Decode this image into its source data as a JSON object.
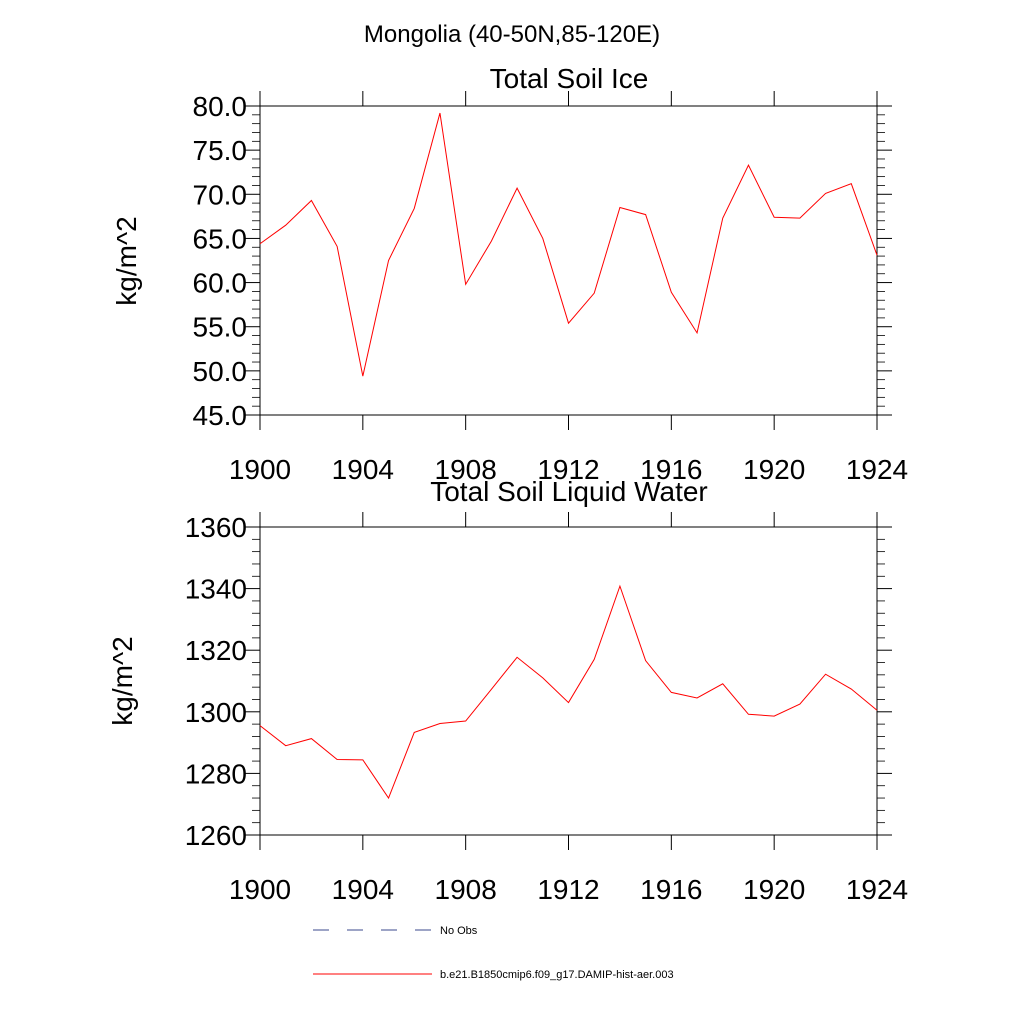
{
  "figure_title": "Mongolia (40-50N,85-120E)",
  "colors": {
    "series": "#ff0000",
    "no_obs": "#3b4a8c",
    "axis": "#000000"
  },
  "chart_data": [
    {
      "type": "line",
      "title": "Total Soil Ice",
      "xlabel": "",
      "ylabel": "kg/m^2",
      "xlim": [
        1900,
        1924
      ],
      "ylim": [
        45,
        80
      ],
      "xticks": [
        1900,
        1904,
        1908,
        1912,
        1916,
        1920,
        1924
      ],
      "xtick_labels": [
        "1900",
        "1904",
        "1908",
        "1912",
        "1916",
        "1920",
        "1924"
      ],
      "yticks": [
        45,
        50,
        55,
        60,
        65,
        70,
        75,
        80
      ],
      "ytick_labels": [
        "45.0",
        "50.0",
        "55.0",
        "60.0",
        "65.0",
        "70.0",
        "75.0",
        "80.0"
      ],
      "x": [
        1900,
        1901,
        1902,
        1903,
        1904,
        1905,
        1906,
        1907,
        1908,
        1909,
        1910,
        1911,
        1912,
        1913,
        1914,
        1915,
        1916,
        1917,
        1918,
        1919,
        1920,
        1921,
        1922,
        1923,
        1924
      ],
      "series": [
        {
          "name": "b.e21.B1850cmip6.f09_g17.DAMIP-hist-aer.003",
          "values": [
            64.4,
            66.5,
            69.3,
            64.1,
            49.4,
            62.5,
            68.4,
            79.2,
            59.8,
            64.7,
            70.7,
            65.0,
            55.4,
            58.8,
            68.5,
            67.7,
            58.9,
            54.3,
            67.3,
            73.3,
            67.4,
            67.3,
            70.1,
            71.2,
            63.1
          ]
        }
      ],
      "grid": false
    },
    {
      "type": "line",
      "title": "Total Soil Liquid Water",
      "xlabel": "",
      "ylabel": "kg/m^2",
      "xlim": [
        1900,
        1924
      ],
      "ylim": [
        1260,
        1360
      ],
      "xticks": [
        1900,
        1904,
        1908,
        1912,
        1916,
        1920,
        1924
      ],
      "xtick_labels": [
        "1900",
        "1904",
        "1908",
        "1912",
        "1916",
        "1920",
        "1924"
      ],
      "yticks": [
        1260,
        1280,
        1300,
        1320,
        1340,
        1360
      ],
      "ytick_labels": [
        "1260",
        "1280",
        "1300",
        "1320",
        "1340",
        "1360"
      ],
      "x": [
        1900,
        1901,
        1902,
        1903,
        1904,
        1905,
        1906,
        1907,
        1908,
        1909,
        1910,
        1911,
        1912,
        1913,
        1914,
        1915,
        1916,
        1917,
        1918,
        1919,
        1920,
        1921,
        1922,
        1923,
        1924
      ],
      "series": [
        {
          "name": "b.e21.B1850cmip6.f09_g17.DAMIP-hist-aer.003",
          "values": [
            1295.5,
            1289.0,
            1291.3,
            1284.5,
            1284.4,
            1272.0,
            1293.3,
            1296.2,
            1297.0,
            1307.3,
            1317.7,
            1311.0,
            1303.0,
            1317.0,
            1340.8,
            1316.6,
            1306.3,
            1304.5,
            1309.1,
            1299.2,
            1298.6,
            1302.5,
            1312.2,
            1307.4,
            1300.5
          ]
        }
      ],
      "grid": false
    }
  ],
  "legend": [
    {
      "label": "No Obs",
      "style": "dashed"
    },
    {
      "label": "b.e21.B1850cmip6.f09_g17.DAMIP-hist-aer.003",
      "style": "solid"
    }
  ]
}
